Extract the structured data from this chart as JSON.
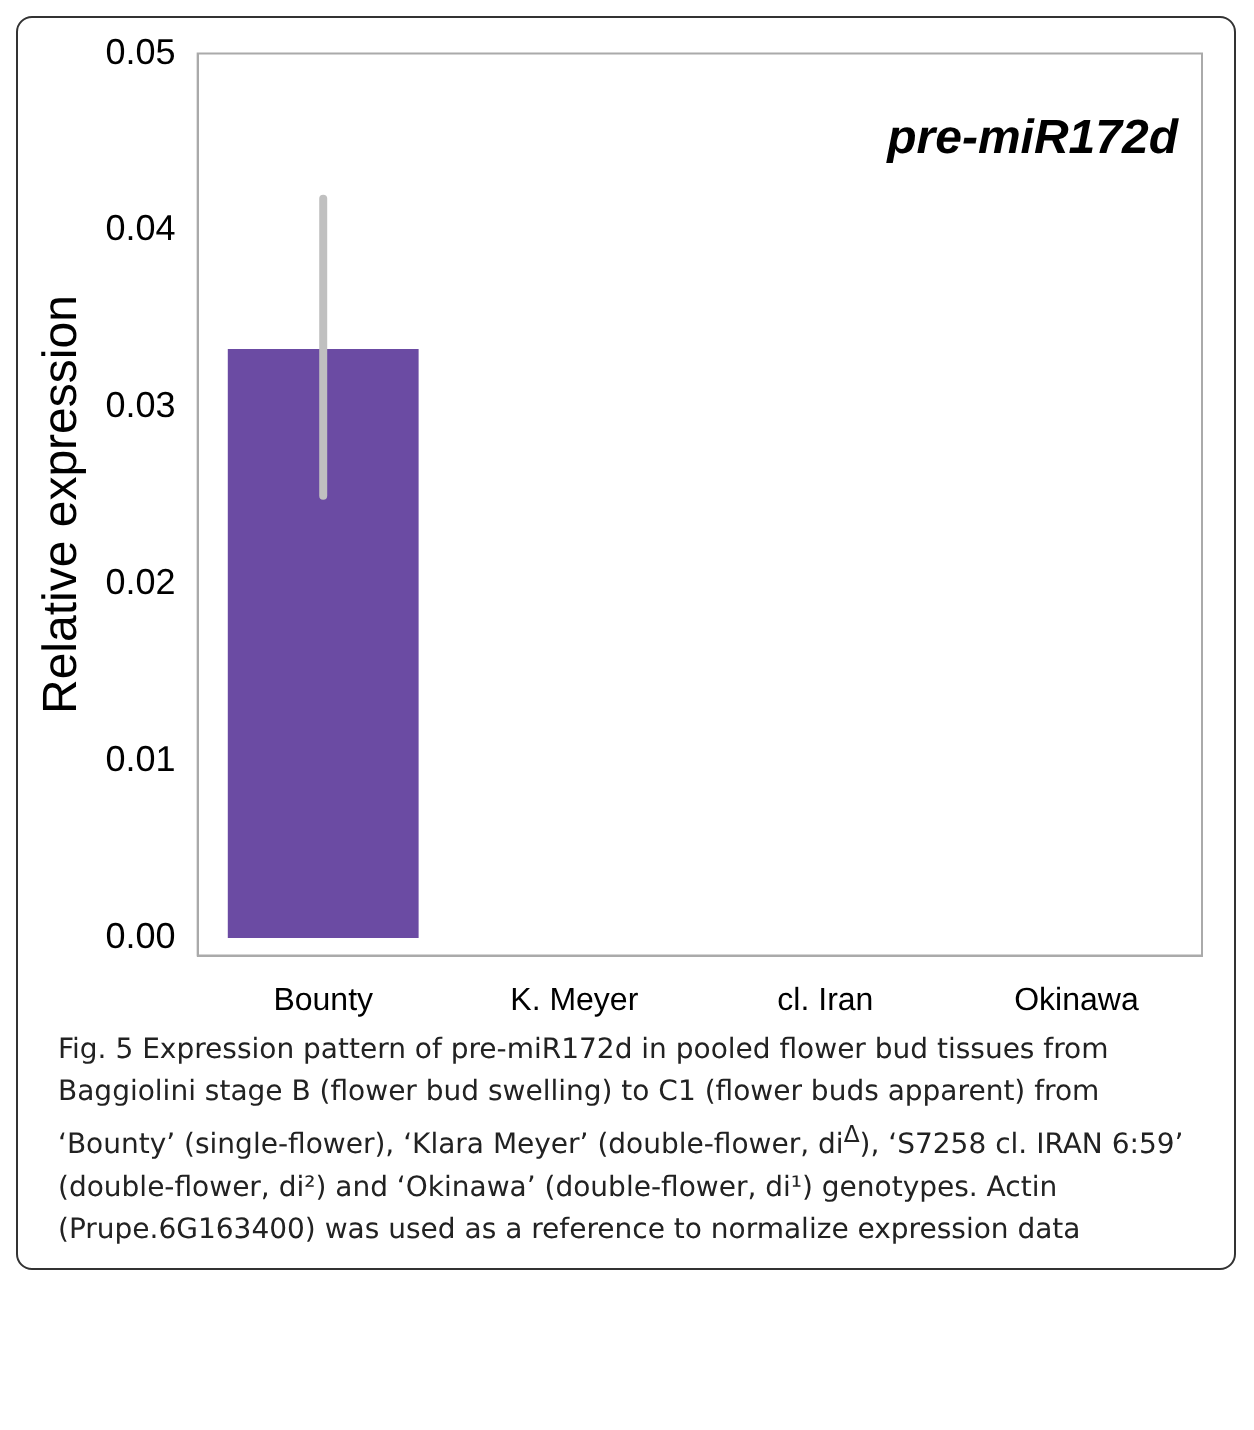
{
  "chart_data": {
    "type": "bar",
    "title": "pre-miR172d",
    "ylabel": "Relative expression",
    "categories": [
      "Bounty",
      "K. Meyer",
      "cl. Iran",
      "Okinawa"
    ],
    "values": [
      0.0333,
      0,
      0,
      0
    ],
    "errors": [
      [
        0.025,
        0.0418
      ],
      null,
      null,
      null
    ],
    "color": "#6b4ba3",
    "ylim": [
      -0.001,
      0.05
    ],
    "yticks": [
      {
        "value": 0,
        "label": "0.00"
      },
      {
        "value": 0.01,
        "label": "0.01"
      },
      {
        "value": 0.02,
        "label": "0.02"
      },
      {
        "value": 0.03,
        "label": "0.03"
      },
      {
        "value": 0.04,
        "label": "0.04"
      },
      {
        "value": 0.05,
        "label": "0.05"
      }
    ],
    "grid": false,
    "legend": false,
    "annotations": [
      "Fig. 5  Expression pattern of pre-miR172d in pooled flower bud tissues from Baggiolini stage B (flower bud swelling) to C1 (flower buds apparent) from ‘Bounty’ (single-flower), ‘Klara Meyer’ (double-flower, di$^{Δ}$), ‘S7258 cl. IRAN 6:59’ (double-flower, di²) and ‘Okinawa’ (double-flower, di¹) genotypes. Actin (Prupe.6G163400) was used as a reference to normalize expression data"
    ]
  }
}
